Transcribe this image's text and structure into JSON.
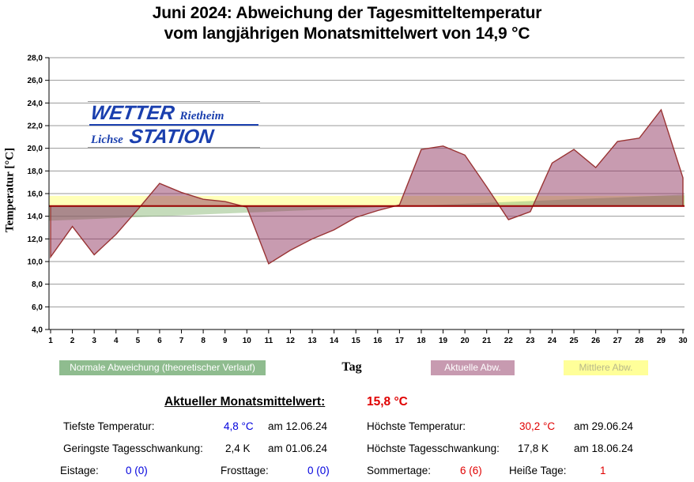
{
  "title": {
    "line1": "Juni 2024: Abweichung der Tagesmitteltemperatur",
    "line2": "vom langjährigen Monatsmittelwert von 14,9 °C"
  },
  "logo": {
    "word_top": "WETTER",
    "word_top_sub": "Rietheim",
    "word_bottom_sub": "Lichse",
    "word_bottom": "STATION",
    "color": "#1a3fae"
  },
  "chart_data": {
    "type": "area",
    "xlabel": "Tag",
    "ylabel": "Temperatur [°C]",
    "ylim": [
      4.0,
      28.0
    ],
    "ytick_step": 2.0,
    "ytick_decimal_comma": true,
    "x_days": [
      1,
      2,
      3,
      4,
      5,
      6,
      7,
      8,
      9,
      10,
      11,
      12,
      13,
      14,
      15,
      16,
      17,
      18,
      19,
      20,
      21,
      22,
      23,
      24,
      25,
      26,
      27,
      28,
      29,
      30
    ],
    "series": [
      {
        "name": "Aktuelle Abw.",
        "values": [
          10.4,
          13.1,
          10.6,
          12.4,
          14.6,
          16.9,
          16.1,
          15.5,
          15.3,
          14.8,
          9.8,
          11.0,
          12.0,
          12.8,
          13.9,
          14.5,
          15.0,
          19.9,
          20.2,
          19.4,
          16.6,
          13.7,
          14.4,
          18.7,
          19.9,
          18.3,
          20.6,
          20.9,
          23.4,
          17.4
        ]
      },
      {
        "name": "Normale Abweichung (theoretischer Verlauf)",
        "line_day1": 13.6,
        "line_day30": 15.9
      },
      {
        "name": "Mittlere Abw.",
        "band_from": 14.9,
        "band_to": 15.8
      }
    ],
    "baseline_long_term_mean": 14.9,
    "grid": true,
    "colors": {
      "grid": "#9a9a9a",
      "axis": "#000000",
      "baseline_red": "#990000",
      "curve_stroke": "#993333",
      "fill_actual": "rgba(140,45,90,0.48)",
      "fill_normal": "rgba(140,185,120,0.5)",
      "fill_mean_band": "rgba(255,255,160,0.75)"
    }
  },
  "legend": [
    {
      "label": "Normale Abweichung (theoretischer Verlauf)",
      "bg": "#8fbc8f",
      "fg": "#ffffff"
    },
    {
      "label": "Aktuelle Abw.",
      "bg": "#c79ab0",
      "fg": "#ffffff"
    },
    {
      "label": "Mittlere Abw.",
      "bg": "#ffff99",
      "fg": "#b8b88a"
    }
  ],
  "stats": {
    "monthly_mean_label": "Aktueller Monatsmittelwert:",
    "monthly_mean_value": "15,8 °C",
    "tiefste_label": "Tiefste Temperatur:",
    "tiefste_value": "4,8 °C",
    "tiefste_date": "am 12.06.24",
    "hoechste_label": "Höchste Temperatur:",
    "hoechste_value": "30,2 °C",
    "hoechste_date": "am 29.06.24",
    "geringste_schw_label": "Geringste Tagesschwankung:",
    "geringste_schw_value": "2,4 K",
    "geringste_schw_date": "am 01.06.24",
    "hoechste_schw_label": "Höchste Tagesschwankung:",
    "hoechste_schw_value": "17,8 K",
    "hoechste_schw_date": "am 18.06.24",
    "eistage_label": "Eistage:",
    "eistage_value": "0 (0)",
    "frosttage_label": "Frosttage:",
    "frosttage_value": "0 (0)",
    "sommertage_label": "Sommertage:",
    "sommertage_value": "6 (6)",
    "heisse_label": "Heiße Tage:",
    "heisse_value": "1"
  }
}
